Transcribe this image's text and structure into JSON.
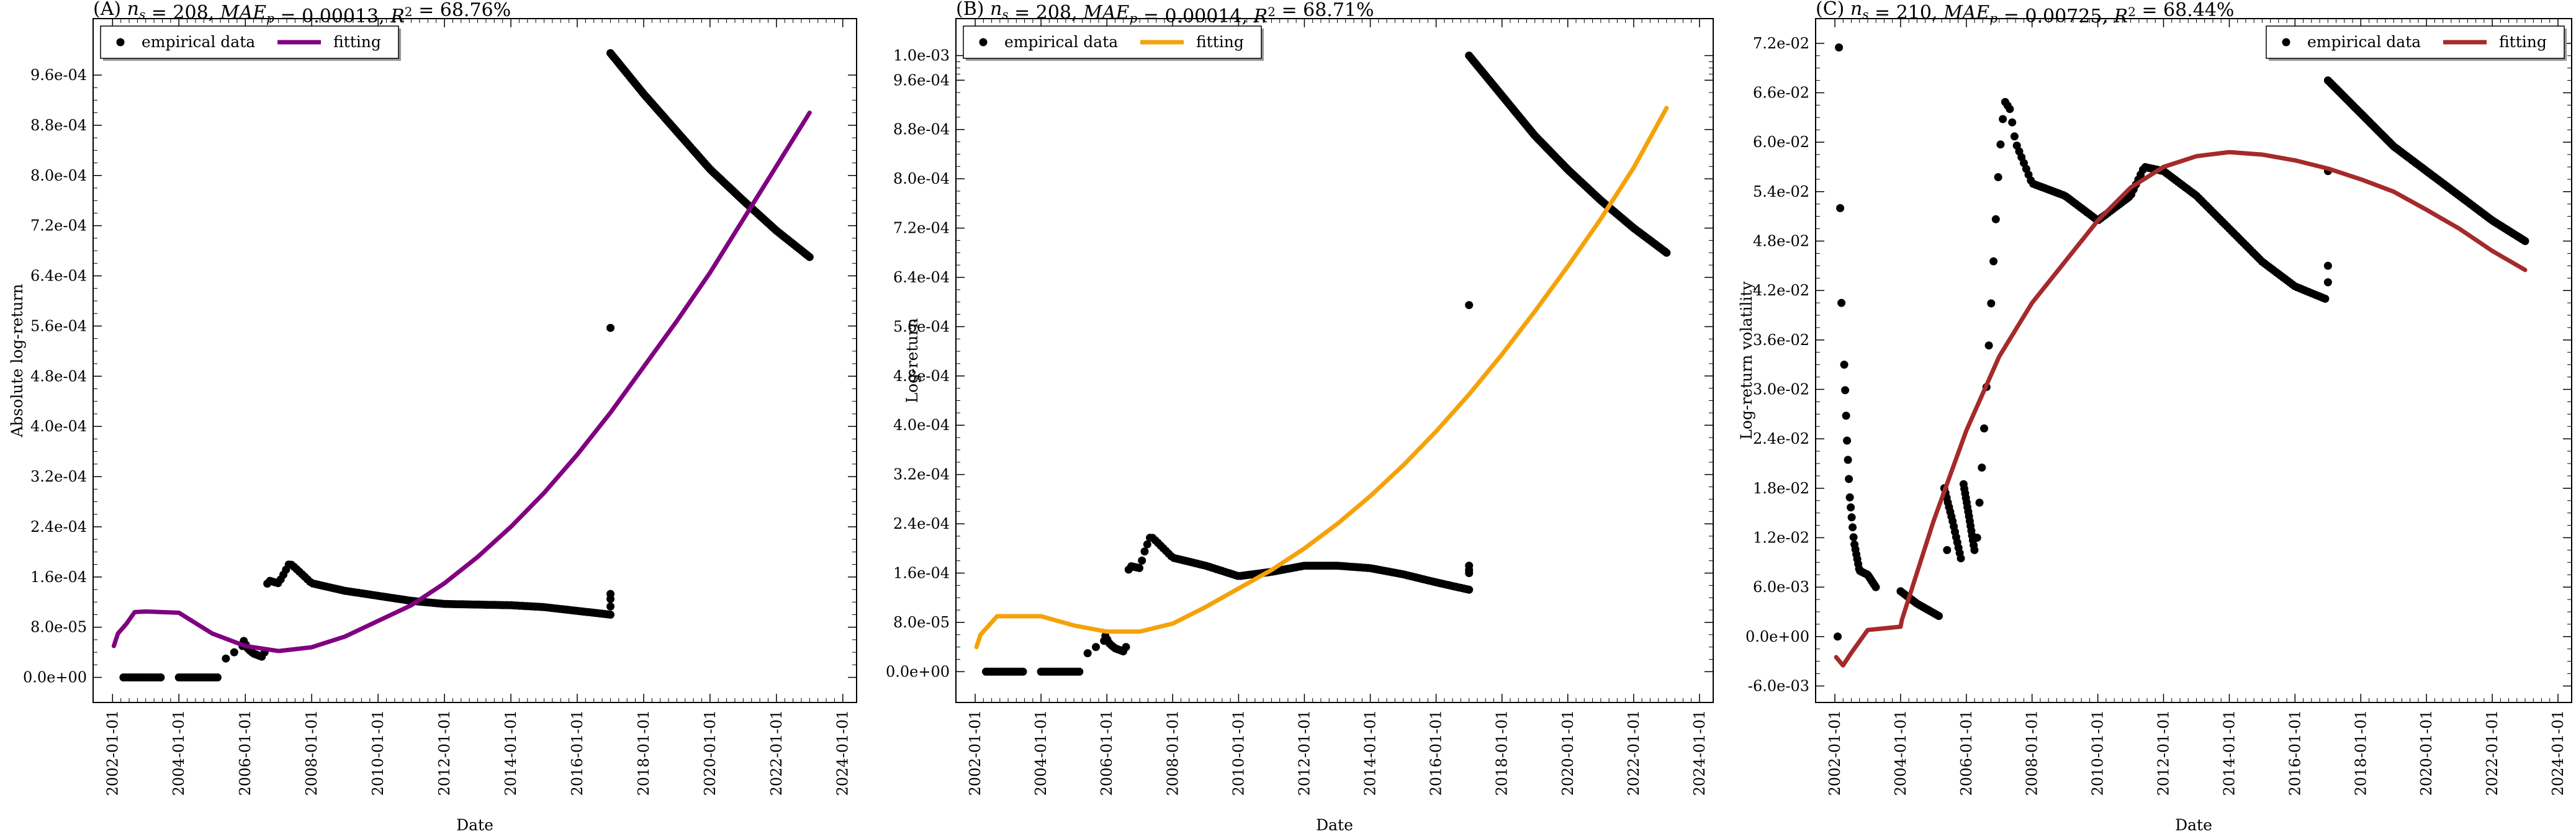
{
  "chart_data": [
    {
      "type": "scatter",
      "title": "(A) n_s = 208, MAE_p = 0.00013, R² = 68.76%",
      "xlabel": "Date",
      "ylabel": "Absolute log-return",
      "x_tick_labels": [
        "2002-01-01",
        "2004-01-01",
        "2006-01-01",
        "2008-01-01",
        "2010-01-01",
        "2012-01-01",
        "2014-01-01",
        "2016-01-01",
        "2018-01-01",
        "2020-01-01",
        "2022-01-01",
        "2024-01-01"
      ],
      "y_tick_labels": [
        "0.0e+00",
        "8.0e-05",
        "1.6e-04",
        "2.4e-04",
        "3.2e-04",
        "4.0e-04",
        "4.8e-04",
        "5.6e-04",
        "6.4e-04",
        "7.2e-04",
        "8.0e-04",
        "8.8e-04",
        "9.6e-04"
      ],
      "xlim": [
        "2001-06-01",
        "2024-06-01"
      ],
      "ylim": [
        -4e-05,
        0.00105
      ],
      "legend": {
        "position": "top-left",
        "entries": [
          "empirical data",
          "fitting"
        ]
      },
      "fit_color": "#800080",
      "series": [
        {
          "name": "empirical data",
          "kind": "points",
          "segments": [
            {
              "x": [
                "2002-05-01",
                "2003-06-15"
              ],
              "y": [
                0,
                0
              ],
              "n": 16
            },
            {
              "x": [
                "2004-01-01",
                "2005-03-01"
              ],
              "y": [
                0,
                0
              ],
              "n": 16
            },
            {
              "x": [
                "2005-06-01",
                "2005-12-01"
              ],
              "y": [
                3e-05,
                5e-05
              ],
              "n": 3
            },
            {
              "x": [
                "2005-12-15",
                "2006-02-01",
                "2006-04-01",
                "2006-07-01"
              ],
              "y": [
                5.8e-05,
                4.5e-05,
                3.8e-05,
                3.3e-05
              ],
              "n": 10
            },
            {
              "x": [
                "2006-08-01",
                "2006-09-01",
                "2007-01-01",
                "2007-03-01",
                "2007-05-01",
                "2007-07-01",
                "2008-01-01",
                "2009-01-01",
                "2010-01-01",
                "2011-01-01",
                "2012-01-01",
                "2013-01-01",
                "2014-01-01",
                "2015-01-01",
                "2016-01-01",
                "2017-01-01"
              ],
              "y": [
                4e-05,
                0.000155,
                0.00015,
                0.000165,
                0.000182,
                0.000175,
                0.00015,
                0.000138,
                0.00013,
                0.000122,
                0.000117,
                0.000116,
                0.000115,
                0.000112,
                0.000106,
                0.0001
              ],
              "n": 130
            },
            {
              "x": [
                "2017-01-01",
                "2017-01-01",
                "2017-01-01"
              ],
              "y": [
                0.000113,
                0.000125,
                0.000133
              ],
              "n": 3
            },
            {
              "x": [
                "2017-01-01"
              ],
              "y": [
                0.000557
              ],
              "n": 1
            },
            {
              "x": [
                "2017-01-01",
                "2018-01-01",
                "2019-01-01",
                "2020-01-01",
                "2021-01-01",
                "2022-01-01",
                "2023-01-01"
              ],
              "y": [
                0.000995,
                0.00093,
                0.00087,
                0.00081,
                0.00076,
                0.000712,
                0.00067
              ],
              "n": 130
            }
          ]
        },
        {
          "name": "fitting",
          "kind": "line",
          "x": [
            "2002-01-15",
            "2002-03-01",
            "2002-06-01",
            "2002-09-01",
            "2003-01-01",
            "2004-01-01",
            "2005-01-01",
            "2006-01-01",
            "2007-01-01",
            "2008-01-01",
            "2009-01-01",
            "2010-01-01",
            "2011-01-01",
            "2012-01-01",
            "2013-01-01",
            "2014-01-01",
            "2015-01-01",
            "2016-01-01",
            "2017-01-01",
            "2018-01-01",
            "2019-01-01",
            "2020-01-01",
            "2021-01-01",
            "2022-01-01",
            "2023-01-01"
          ],
          "y": [
            5e-05,
            7e-05,
            8.5e-05,
            0.000104,
            0.000105,
            0.000103,
            7e-05,
            5e-05,
            4.2e-05,
            4.8e-05,
            6.5e-05,
            9e-05,
            0.000115,
            0.00015,
            0.000192,
            0.00024,
            0.000294,
            0.000355,
            0.000422,
            0.000495,
            0.000568,
            0.000645,
            0.00073,
            0.000815,
            0.0009
          ]
        }
      ]
    },
    {
      "type": "scatter",
      "title": "(B) n_s = 208, MAE_p = 0.00014, R² = 68.71%",
      "xlabel": "Date",
      "ylabel": "Log-return",
      "x_tick_labels": [
        "2002-01-01",
        "2004-01-01",
        "2006-01-01",
        "2008-01-01",
        "2010-01-01",
        "2012-01-01",
        "2014-01-01",
        "2016-01-01",
        "2018-01-01",
        "2020-01-01",
        "2022-01-01",
        "2024-01-01"
      ],
      "y_tick_labels": [
        "0.0e+00",
        "8.0e-05",
        "1.6e-04",
        "2.4e-04",
        "3.2e-04",
        "4.0e-04",
        "4.8e-04",
        "5.6e-04",
        "6.4e-04",
        "7.2e-04",
        "8.0e-04",
        "8.8e-04",
        "9.6e-04",
        "1.0e-03"
      ],
      "xlim": [
        "2001-06-01",
        "2024-06-01"
      ],
      "ylim": [
        -5e-05,
        0.00106
      ],
      "legend": {
        "position": "top-left",
        "entries": [
          "empirical data",
          "fitting"
        ]
      },
      "fit_color": "#f5a20a",
      "series": [
        {
          "name": "empirical data",
          "kind": "points",
          "segments": [
            {
              "x": [
                "2002-05-01",
                "2003-06-15"
              ],
              "y": [
                0,
                0
              ],
              "n": 16
            },
            {
              "x": [
                "2004-01-01",
                "2005-03-01"
              ],
              "y": [
                0,
                0
              ],
              "n": 16
            },
            {
              "x": [
                "2005-06-01",
                "2005-12-01"
              ],
              "y": [
                3e-05,
                5e-05
              ],
              "n": 3
            },
            {
              "x": [
                "2005-12-15",
                "2006-02-01",
                "2006-04-01",
                "2006-07-01"
              ],
              "y": [
                5.8e-05,
                4.5e-05,
                3.8e-05,
                3.3e-05
              ],
              "n": 10
            },
            {
              "x": [
                "2006-08-01",
                "2006-09-01",
                "2007-01-01",
                "2007-03-01",
                "2007-05-01",
                "2007-07-01",
                "2008-01-01",
                "2009-01-01",
                "2010-01-01",
                "2011-01-01",
                "2012-01-01",
                "2013-01-01",
                "2014-01-01",
                "2015-01-01",
                "2016-01-01",
                "2017-01-01"
              ],
              "y": [
                4e-05,
                0.000172,
                0.000168,
                0.000198,
                0.00022,
                0.000212,
                0.000185,
                0.000172,
                0.000155,
                0.000162,
                0.000172,
                0.000172,
                0.000168,
                0.000158,
                0.000145,
                0.000133
              ],
              "n": 130
            },
            {
              "x": [
                "2017-01-01",
                "2017-01-01",
                "2017-01-01"
              ],
              "y": [
                0.00016,
                0.000165,
                0.000172
              ],
              "n": 3
            },
            {
              "x": [
                "2017-01-01"
              ],
              "y": [
                0.000595
              ],
              "n": 1
            },
            {
              "x": [
                "2017-01-01",
                "2018-01-01",
                "2019-01-01",
                "2020-01-01",
                "2021-01-01",
                "2022-01-01",
                "2023-01-01"
              ],
              "y": [
                0.001,
                0.000935,
                0.00087,
                0.000815,
                0.000765,
                0.00072,
                0.00068
              ],
              "n": 130
            }
          ]
        },
        {
          "name": "fitting",
          "kind": "line",
          "x": [
            "2002-01-15",
            "2002-03-01",
            "2002-06-01",
            "2002-09-01",
            "2003-01-01",
            "2004-01-01",
            "2005-01-01",
            "2006-01-01",
            "2007-01-01",
            "2008-01-01",
            "2009-01-01",
            "2010-01-01",
            "2011-01-01",
            "2012-01-01",
            "2013-01-01",
            "2014-01-01",
            "2015-01-01",
            "2016-01-01",
            "2017-01-01",
            "2018-01-01",
            "2019-01-01",
            "2020-01-01",
            "2021-01-01",
            "2022-01-01",
            "2023-01-01"
          ],
          "y": [
            4e-05,
            6e-05,
            7.5e-05,
            9e-05,
            9e-05,
            9e-05,
            7.5e-05,
            6.5e-05,
            6.5e-05,
            7.8e-05,
            0.000105,
            0.000135,
            0.000165,
            0.0002,
            0.00024,
            0.000285,
            0.000335,
            0.00039,
            0.00045,
            0.000515,
            0.000585,
            0.000658,
            0.000735,
            0.000818,
            0.000915
          ]
        }
      ]
    },
    {
      "type": "scatter",
      "title": "(C) n_s = 210, MAE_p = 0.00725, R² = 68.44%",
      "xlabel": "Date",
      "ylabel": "Log-return volatility",
      "x_tick_labels": [
        "2002-01-01",
        "2004-01-01",
        "2006-01-01",
        "2008-01-01",
        "2010-01-01",
        "2012-01-01",
        "2014-01-01",
        "2016-01-01",
        "2018-01-01",
        "2020-01-01",
        "2022-01-01",
        "2024-01-01"
      ],
      "y_tick_labels": [
        "-6.0e-03",
        "0.0e+00",
        "6.0e-03",
        "1.2e-02",
        "1.8e-02",
        "2.4e-02",
        "3.0e-02",
        "3.6e-02",
        "4.2e-02",
        "4.8e-02",
        "5.4e-02",
        "6.0e-02",
        "6.6e-02",
        "7.2e-02"
      ],
      "xlim": [
        "2001-06-01",
        "2024-06-01"
      ],
      "ylim": [
        -0.008,
        0.075
      ],
      "legend": {
        "position": "top-right",
        "entries": [
          "empirical data",
          "fitting"
        ]
      },
      "fit_color": "#a52a2a",
      "series": [
        {
          "name": "empirical data",
          "kind": "points",
          "segments": [
            {
              "x": [
                "2002-02-01"
              ],
              "y": [
                0.0
              ],
              "n": 1
            },
            {
              "x": [
                "2002-02-15"
              ],
              "y": [
                0.0715
              ],
              "n": 1
            },
            {
              "x": [
                "2002-03-01"
              ],
              "y": [
                0.052
              ],
              "n": 1
            },
            {
              "x": [
                "2002-03-15"
              ],
              "y": [
                0.0405
              ],
              "n": 1
            },
            {
              "x": [
                "2002-04-15",
                "2002-05-15",
                "2002-06-15",
                "2002-08-01",
                "2002-10-01",
                "2003-01-01",
                "2003-04-01"
              ],
              "y": [
                0.033,
                0.024,
                0.017,
                0.0115,
                0.008,
                0.0075,
                0.006
              ],
              "n": 35
            },
            {
              "x": [
                "2004-01-01",
                "2004-07-01",
                "2005-03-01"
              ],
              "y": [
                0.0055,
                0.004,
                0.0025
              ],
              "n": 20
            },
            {
              "x": [
                "2005-06-01"
              ],
              "y": [
                0.0105
              ],
              "n": 1
            },
            {
              "x": [
                "2005-05-01",
                "2005-08-01",
                "2005-11-01"
              ],
              "y": [
                0.018,
                0.014,
                0.0095
              ],
              "n": 15
            },
            {
              "x": [
                "2005-12-01",
                "2006-02-01",
                "2006-04-01"
              ],
              "y": [
                0.0185,
                0.0145,
                0.0105
              ],
              "n": 15
            },
            {
              "x": [
                "2006-05-01",
                "2006-07-01",
                "2006-09-01",
                "2006-11-01",
                "2007-01-01",
                "2007-03-01",
                "2007-05-01",
                "2007-07-01",
                "2008-01-01",
                "2009-01-01",
                "2010-01-01",
                "2011-01-01",
                "2011-06-01",
                "2012-01-01",
                "2013-01-01",
                "2014-01-01",
                "2015-01-01",
                "2016-01-01",
                "2016-12-01"
              ],
              "y": [
                0.012,
                0.022,
                0.034,
                0.046,
                0.058,
                0.065,
                0.064,
                0.06,
                0.055,
                0.0535,
                0.0505,
                0.0535,
                0.057,
                0.0565,
                0.0535,
                0.0495,
                0.0455,
                0.0425,
                0.041
              ],
              "n": 150
            },
            {
              "x": [
                "2017-01-01",
                "2017-01-01"
              ],
              "y": [
                0.043,
                0.045
              ],
              "n": 2
            },
            {
              "x": [
                "2017-01-01"
              ],
              "y": [
                0.0565
              ],
              "n": 1
            },
            {
              "x": [
                "2017-01-01",
                "2018-01-01",
                "2019-01-01",
                "2020-01-01",
                "2021-01-01",
                "2022-01-01",
                "2023-01-01"
              ],
              "y": [
                0.0675,
                0.0635,
                0.0595,
                0.0565,
                0.0535,
                0.0505,
                0.048
              ],
              "n": 130
            }
          ]
        },
        {
          "name": "fitting",
          "kind": "line",
          "x": [
            "2002-01-15",
            "2002-04-01",
            "2002-07-01",
            "2003-01-01",
            "2004-01-01",
            "2004-01-15",
            "2005-01-01",
            "2006-01-01",
            "2007-01-01",
            "2008-01-01",
            "2009-01-01",
            "2010-01-01",
            "2011-01-01",
            "2012-01-01",
            "2013-01-01",
            "2014-01-01",
            "2015-01-01",
            "2016-01-01",
            "2017-01-01",
            "2018-01-01",
            "2019-01-01",
            "2020-01-01",
            "2021-01-01",
            "2022-01-01",
            "2023-01-01"
          ],
          "y": [
            -0.0025,
            -0.0035,
            -0.002,
            0.0008,
            0.0012,
            0.002,
            0.014,
            0.025,
            0.034,
            0.0405,
            0.0455,
            0.0505,
            0.0545,
            0.057,
            0.0583,
            0.0588,
            0.0585,
            0.0578,
            0.0568,
            0.0555,
            0.054,
            0.0518,
            0.0495,
            0.0468,
            0.0445
          ]
        }
      ]
    }
  ]
}
